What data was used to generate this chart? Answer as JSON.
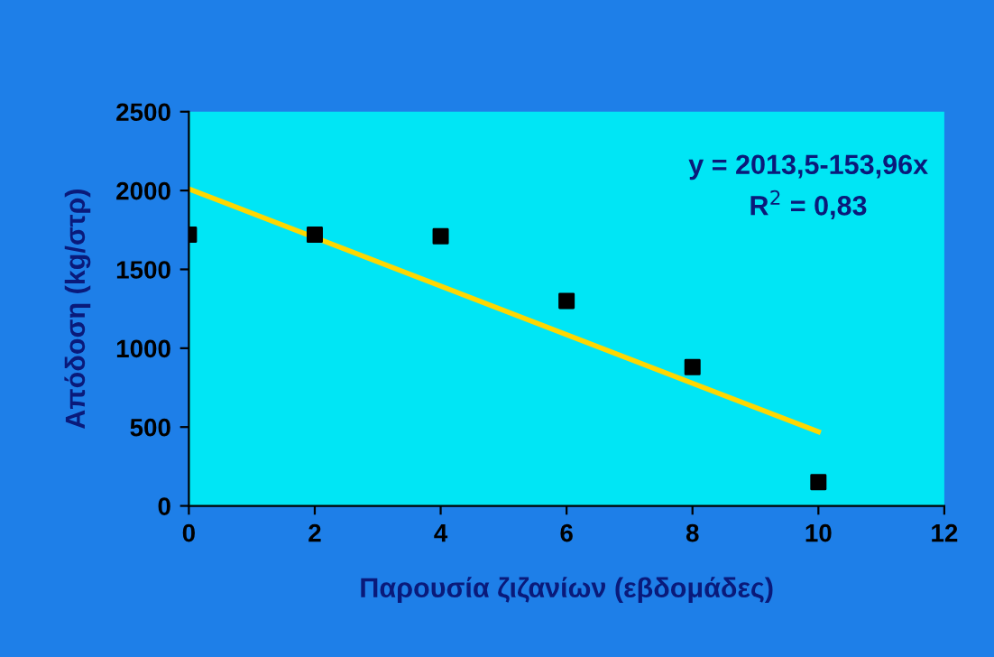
{
  "chart_data": {
    "type": "scatter",
    "xlabel": "Παρουσία ζιζανίων (εβδομάδες)",
    "ylabel": "Απόδοση (kg/στρ)",
    "series": [
      {
        "color": "#000000",
        "marker": "square",
        "x": [
          0,
          2,
          4,
          6,
          8,
          10
        ],
        "values": [
          1720,
          1720,
          1710,
          1300,
          880,
          150
        ]
      },
      {
        "type": "line",
        "color": "#ffd700",
        "marker": "none",
        "line_style": "solid",
        "x": [
          0,
          10
        ],
        "values": [
          2010,
          470
        ]
      }
    ],
    "annotations": [
      "y = 2013,5-153,96x",
      "R$^{2}$ = 0,83"
    ],
    "xlim": [
      0,
      12
    ],
    "xticks": [
      0,
      2,
      4,
      6,
      8,
      10,
      12
    ],
    "ylim": [
      0,
      2500
    ],
    "yticks": [
      0,
      500,
      1000,
      1500,
      2000,
      2500
    ],
    "grid": false,
    "legend": false
  }
}
